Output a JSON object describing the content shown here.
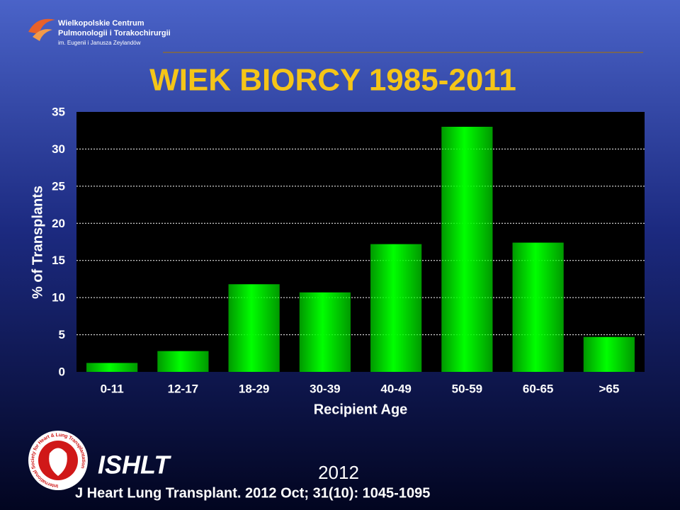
{
  "header": {
    "org_line1": "Wielkopolskie Centrum",
    "org_line2": "Pulmonologii i Torakochirurgii",
    "org_line3": "im. Eugenii i Janusza Zeylandów"
  },
  "chart_data": {
    "type": "bar",
    "title": "WIEK BIORCY 1985-2011",
    "x_label": "Recipient Age",
    "y_label": "% of Transplants",
    "categories": [
      "0-11",
      "12-17",
      "18-29",
      "30-39",
      "40-49",
      "50-59",
      "60-65",
      ">65"
    ],
    "values": [
      1.2,
      2.8,
      11.8,
      10.7,
      17.2,
      33.0,
      17.4,
      4.7
    ],
    "color": "#00ff00",
    "ylim": [
      0,
      35
    ],
    "yticks": [
      0,
      5,
      10,
      15,
      20,
      25,
      30,
      35
    ],
    "grid": true
  },
  "footer": {
    "ring_text": "International Society for Heart & Lung Transplantation",
    "org": "ISHLT",
    "year": "2012",
    "citation": "J Heart Lung Transplant. 2012 Oct; 31(10): 1045-1095"
  }
}
